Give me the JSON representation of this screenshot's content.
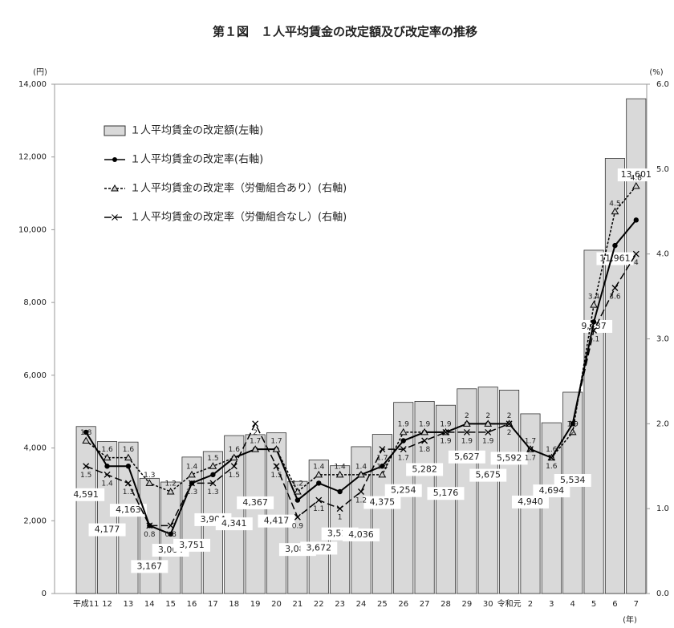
{
  "chart_data": {
    "type": "bar-line",
    "title": "第１図　１人平均賃金の改定額及び改定率の推移",
    "y_unit": "(円)",
    "y2_unit": "(%)",
    "x_unit": "(年)",
    "categories": [
      "平成11",
      "12",
      "13",
      "14",
      "15",
      "16",
      "17",
      "18",
      "19",
      "20",
      "21",
      "22",
      "23",
      "24",
      "25",
      "26",
      "27",
      "28",
      "29",
      "30",
      "令和元",
      "2",
      "3",
      "4",
      "5",
      "6",
      "7"
    ],
    "ylim": [
      0,
      14000
    ],
    "yticks": [
      {
        "value": 0,
        "label": "0"
      },
      {
        "value": 2000,
        "label": "2,000"
      },
      {
        "value": 4000,
        "label": "4,000"
      },
      {
        "value": 6000,
        "label": "6,000"
      },
      {
        "value": 8000,
        "label": "8,000"
      },
      {
        "value": 10000,
        "label": "10,000"
      },
      {
        "value": 12000,
        "label": "12,000"
      },
      {
        "value": 14000,
        "label": "14,000"
      }
    ],
    "y2lim": [
      0,
      6
    ],
    "y2ticks": [
      {
        "value": 0,
        "label": "0.0"
      },
      {
        "value": 1,
        "label": "1.0"
      },
      {
        "value": 2,
        "label": "2.0"
      },
      {
        "value": 3,
        "label": "3.0"
      },
      {
        "value": 4,
        "label": "4.0"
      },
      {
        "value": 5,
        "label": "5.0"
      },
      {
        "value": 6,
        "label": "6.0"
      }
    ],
    "series": [
      {
        "name": "１人平均賃金の改定額(左軸)",
        "type": "bar",
        "color": "#d9d9d9",
        "values": [
          4591,
          4177,
          4163,
          3167,
          3064,
          3751,
          3904,
          4341,
          4367,
          4417,
          3083,
          3672,
          3513,
          4036,
          4375,
          5254,
          5282,
          5176,
          5627,
          5675,
          5592,
          4940,
          4694,
          5534,
          9437,
          11961,
          13601
        ],
        "value_labels": [
          "4,591",
          "4,177",
          "4,163",
          "3,167",
          "3,064",
          "3,751",
          "3,904",
          "4,341",
          "4,367",
          "4,417",
          "3,083",
          "3,672",
          "3,513",
          "4,036",
          "4,375",
          "5,254",
          "5,282",
          "5,176",
          "5,627",
          "5,675",
          "5,592",
          "4,940",
          "4,694",
          "5,534",
          "9,437",
          "11,961",
          "13,601"
        ]
      },
      {
        "name": "１人平均賃金の改定率(右軸)",
        "type": "line",
        "axis": "y2",
        "color": "#000000",
        "marker": "circle",
        "dash": "solid",
        "values": [
          1.9,
          1.5,
          1.5,
          0.8,
          0.7,
          1.3,
          1.4,
          1.6,
          1.7,
          1.7,
          1.1,
          1.3,
          1.2,
          1.4,
          1.5,
          1.8,
          1.9,
          1.9,
          2.0,
          2.0,
          2.0,
          1.7,
          1.6,
          2.0,
          3.2,
          4.1,
          4.4
        ]
      },
      {
        "name": "１人平均賃金の改定率（労働組合あり）(右軸)",
        "type": "line",
        "axis": "y2",
        "color": "#000000",
        "marker": "triangle",
        "dash": "short",
        "values": [
          1.8,
          1.6,
          1.6,
          1.3,
          1.2,
          1.4,
          1.5,
          1.6,
          1.7,
          1.7,
          1.2,
          1.4,
          1.4,
          1.4,
          1.4,
          1.9,
          1.9,
          1.9,
          2.0,
          2.0,
          2.0,
          1.7,
          1.6,
          1.9,
          3.4,
          4.5,
          4.8
        ]
      },
      {
        "name": "１人平均賃金の改定率（労働組合なし）(右軸)",
        "type": "line",
        "axis": "y2",
        "color": "#000000",
        "marker": "x",
        "dash": "long",
        "values": [
          1.5,
          1.4,
          1.3,
          0.8,
          0.8,
          1.3,
          1.3,
          1.5,
          2.0,
          1.5,
          0.9,
          1.1,
          1.0,
          1.2,
          1.7,
          1.7,
          1.8,
          1.9,
          1.9,
          1.9,
          2.0,
          1.7,
          1.6,
          2.0,
          3.1,
          3.6,
          4.0
        ]
      }
    ]
  }
}
